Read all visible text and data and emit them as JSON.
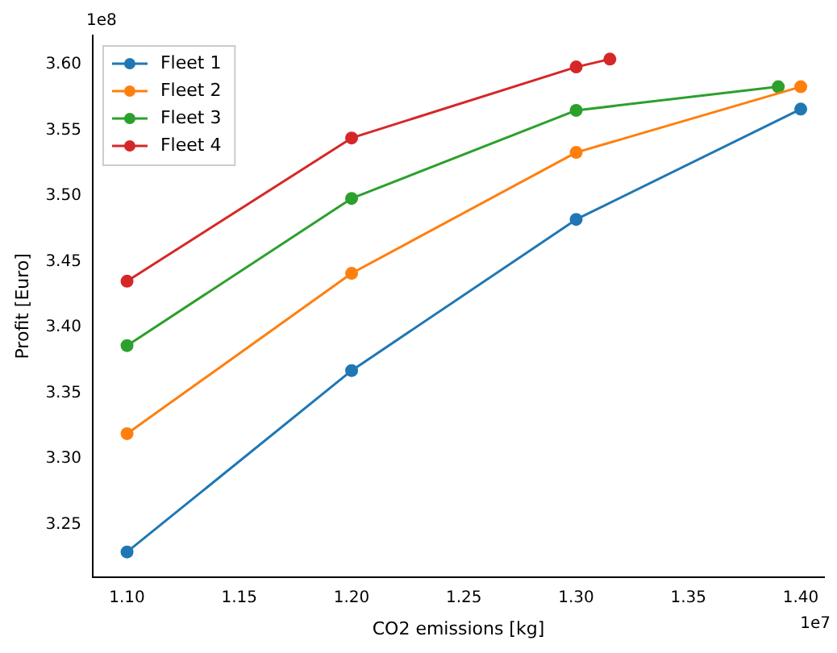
{
  "chart_data": {
    "type": "line",
    "xlabel": "CO2 emissions [kg]",
    "ylabel": "Profit [Euro]",
    "annotations": [
      "1e8",
      "1e7"
    ],
    "xlim": [
      1.0847,
      1.4104
    ],
    "ylim": [
      3.21,
      3.622
    ],
    "xticks": [
      {
        "value": 1.1,
        "label": "1.10"
      },
      {
        "value": 1.15,
        "label": "1.15"
      },
      {
        "value": 1.2,
        "label": "1.20"
      },
      {
        "value": 1.25,
        "label": "1.25"
      },
      {
        "value": 1.3,
        "label": "1.30"
      },
      {
        "value": 1.35,
        "label": "1.35"
      },
      {
        "value": 1.4,
        "label": "1.40"
      }
    ],
    "yticks": [
      {
        "value": 3.25,
        "label": "3.25"
      },
      {
        "value": 3.3,
        "label": "3.30"
      },
      {
        "value": 3.35,
        "label": "3.35"
      },
      {
        "value": 3.4,
        "label": "3.40"
      },
      {
        "value": 3.45,
        "label": "3.45"
      },
      {
        "value": 3.5,
        "label": "3.50"
      },
      {
        "value": 3.55,
        "label": "3.55"
      },
      {
        "value": 3.6,
        "label": "3.60"
      }
    ],
    "grid": false,
    "legend": "top left",
    "marker": "circle",
    "line_style": "solid",
    "series": [
      {
        "name": "Fleet 1",
        "color": "#1f77b4",
        "x": [
          1.1,
          1.2,
          1.3,
          1.4
        ],
        "values": [
          3.229,
          3.367,
          3.482,
          3.566
        ]
      },
      {
        "name": "Fleet 2",
        "color": "#ff7f0e",
        "x": [
          1.1,
          1.2,
          1.3,
          1.4
        ],
        "values": [
          3.319,
          3.441,
          3.533,
          3.583
        ]
      },
      {
        "name": "Fleet 3",
        "color": "#2ca02c",
        "x": [
          1.1,
          1.2,
          1.3,
          1.39
        ],
        "values": [
          3.386,
          3.498,
          3.565,
          3.583
        ]
      },
      {
        "name": "Fleet 4",
        "color": "#d62728",
        "x": [
          1.1,
          1.2,
          1.3,
          1.315
        ],
        "values": [
          3.435,
          3.544,
          3.598,
          3.604
        ]
      }
    ]
  }
}
